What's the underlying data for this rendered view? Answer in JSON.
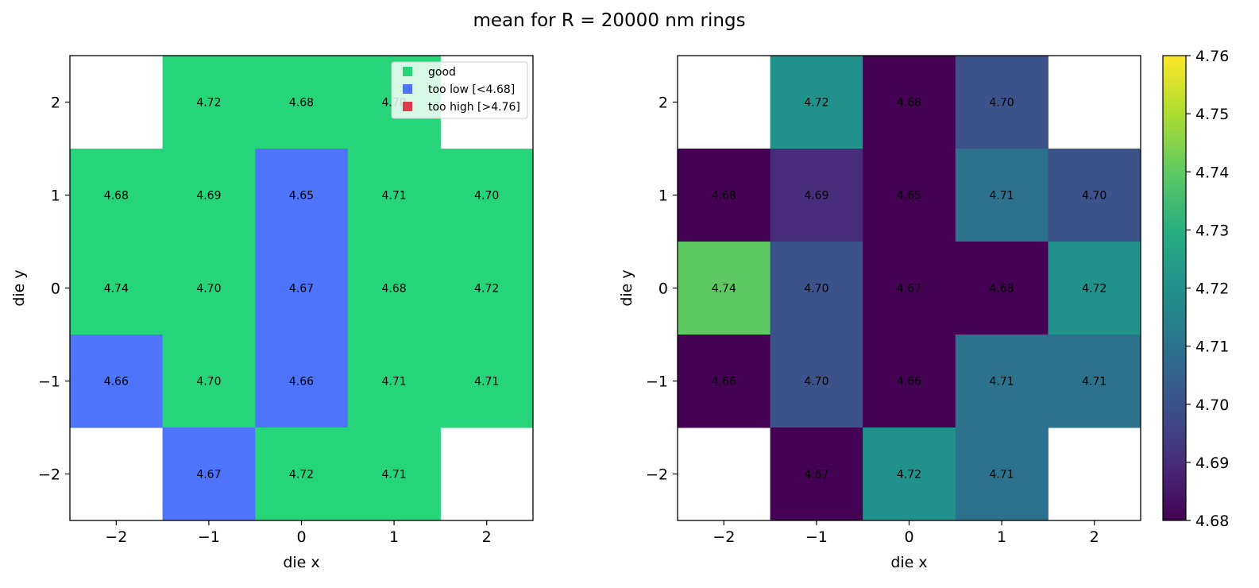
{
  "figure": {
    "title": "mean for R = 20000 nm rings"
  },
  "chart_data": [
    {
      "type": "heatmap",
      "xlabel": "die x",
      "ylabel": "die y",
      "x": [
        -2,
        -1,
        0,
        1,
        2
      ],
      "y": [
        2,
        1,
        0,
        -1,
        -2
      ],
      "xtick_labels": [
        "−2",
        "−1",
        "0",
        "1",
        "2"
      ],
      "ytick_labels": [
        "2",
        "1",
        "0",
        "−1",
        "−2"
      ],
      "values": [
        [
          null,
          4.72,
          4.68,
          4.7,
          null
        ],
        [
          4.68,
          4.69,
          4.65,
          4.71,
          4.7
        ],
        [
          4.74,
          4.7,
          4.67,
          4.68,
          4.72
        ],
        [
          4.66,
          4.7,
          4.66,
          4.71,
          4.71
        ],
        [
          null,
          4.67,
          4.72,
          4.71,
          null
        ]
      ],
      "value_labels": [
        [
          null,
          "4.72",
          "4.68",
          "4.70",
          null
        ],
        [
          "4.68",
          "4.69",
          "4.65",
          "4.71",
          "4.70"
        ],
        [
          "4.74",
          "4.70",
          "4.67",
          "4.68",
          "4.72"
        ],
        [
          "4.66",
          "4.70",
          "4.66",
          "4.71",
          "4.71"
        ],
        [
          null,
          "4.67",
          "4.72",
          "4.71",
          null
        ]
      ],
      "categories": {
        "good": "#26d47a",
        "too_low": "#4e74fb",
        "too_high": "#dc3c4c"
      },
      "legend": {
        "position": "top-right",
        "items": [
          {
            "key": "good",
            "label": "good",
            "color": "#26d47a"
          },
          {
            "key": "too_low",
            "label": "too low [<4.68]",
            "color": "#4e74fb"
          },
          {
            "key": "too_high",
            "label": "too high [>4.76]",
            "color": "#dc3c4c"
          }
        ]
      },
      "thresholds": {
        "low": 4.68,
        "high": 4.76
      }
    },
    {
      "type": "heatmap",
      "xlabel": "die x",
      "ylabel": "die y",
      "x": [
        -2,
        -1,
        0,
        1,
        2
      ],
      "y": [
        2,
        1,
        0,
        -1,
        -2
      ],
      "xtick_labels": [
        "−2",
        "−1",
        "0",
        "1",
        "2"
      ],
      "ytick_labels": [
        "2",
        "1",
        "0",
        "−1",
        "−2"
      ],
      "values": [
        [
          null,
          4.72,
          4.68,
          4.7,
          null
        ],
        [
          4.68,
          4.69,
          4.65,
          4.71,
          4.7
        ],
        [
          4.74,
          4.7,
          4.67,
          4.68,
          4.72
        ],
        [
          4.66,
          4.7,
          4.66,
          4.71,
          4.71
        ],
        [
          null,
          4.67,
          4.72,
          4.71,
          null
        ]
      ],
      "value_labels": [
        [
          null,
          "4.72",
          "4.68",
          "4.70",
          null
        ],
        [
          "4.68",
          "4.69",
          "4.65",
          "4.71",
          "4.70"
        ],
        [
          "4.74",
          "4.70",
          "4.67",
          "4.68",
          "4.72"
        ],
        [
          "4.66",
          "4.70",
          "4.66",
          "4.71",
          "4.71"
        ],
        [
          null,
          "4.67",
          "4.72",
          "4.71",
          null
        ]
      ],
      "colormap": "viridis",
      "colorbar": {
        "range": [
          4.68,
          4.76
        ],
        "ticks": [
          4.68,
          4.69,
          4.7,
          4.71,
          4.72,
          4.73,
          4.74,
          4.75,
          4.76
        ],
        "tick_labels": [
          "4.68",
          "4.69",
          "4.70",
          "4.71",
          "4.72",
          "4.73",
          "4.74",
          "4.75",
          "4.76"
        ]
      }
    }
  ]
}
